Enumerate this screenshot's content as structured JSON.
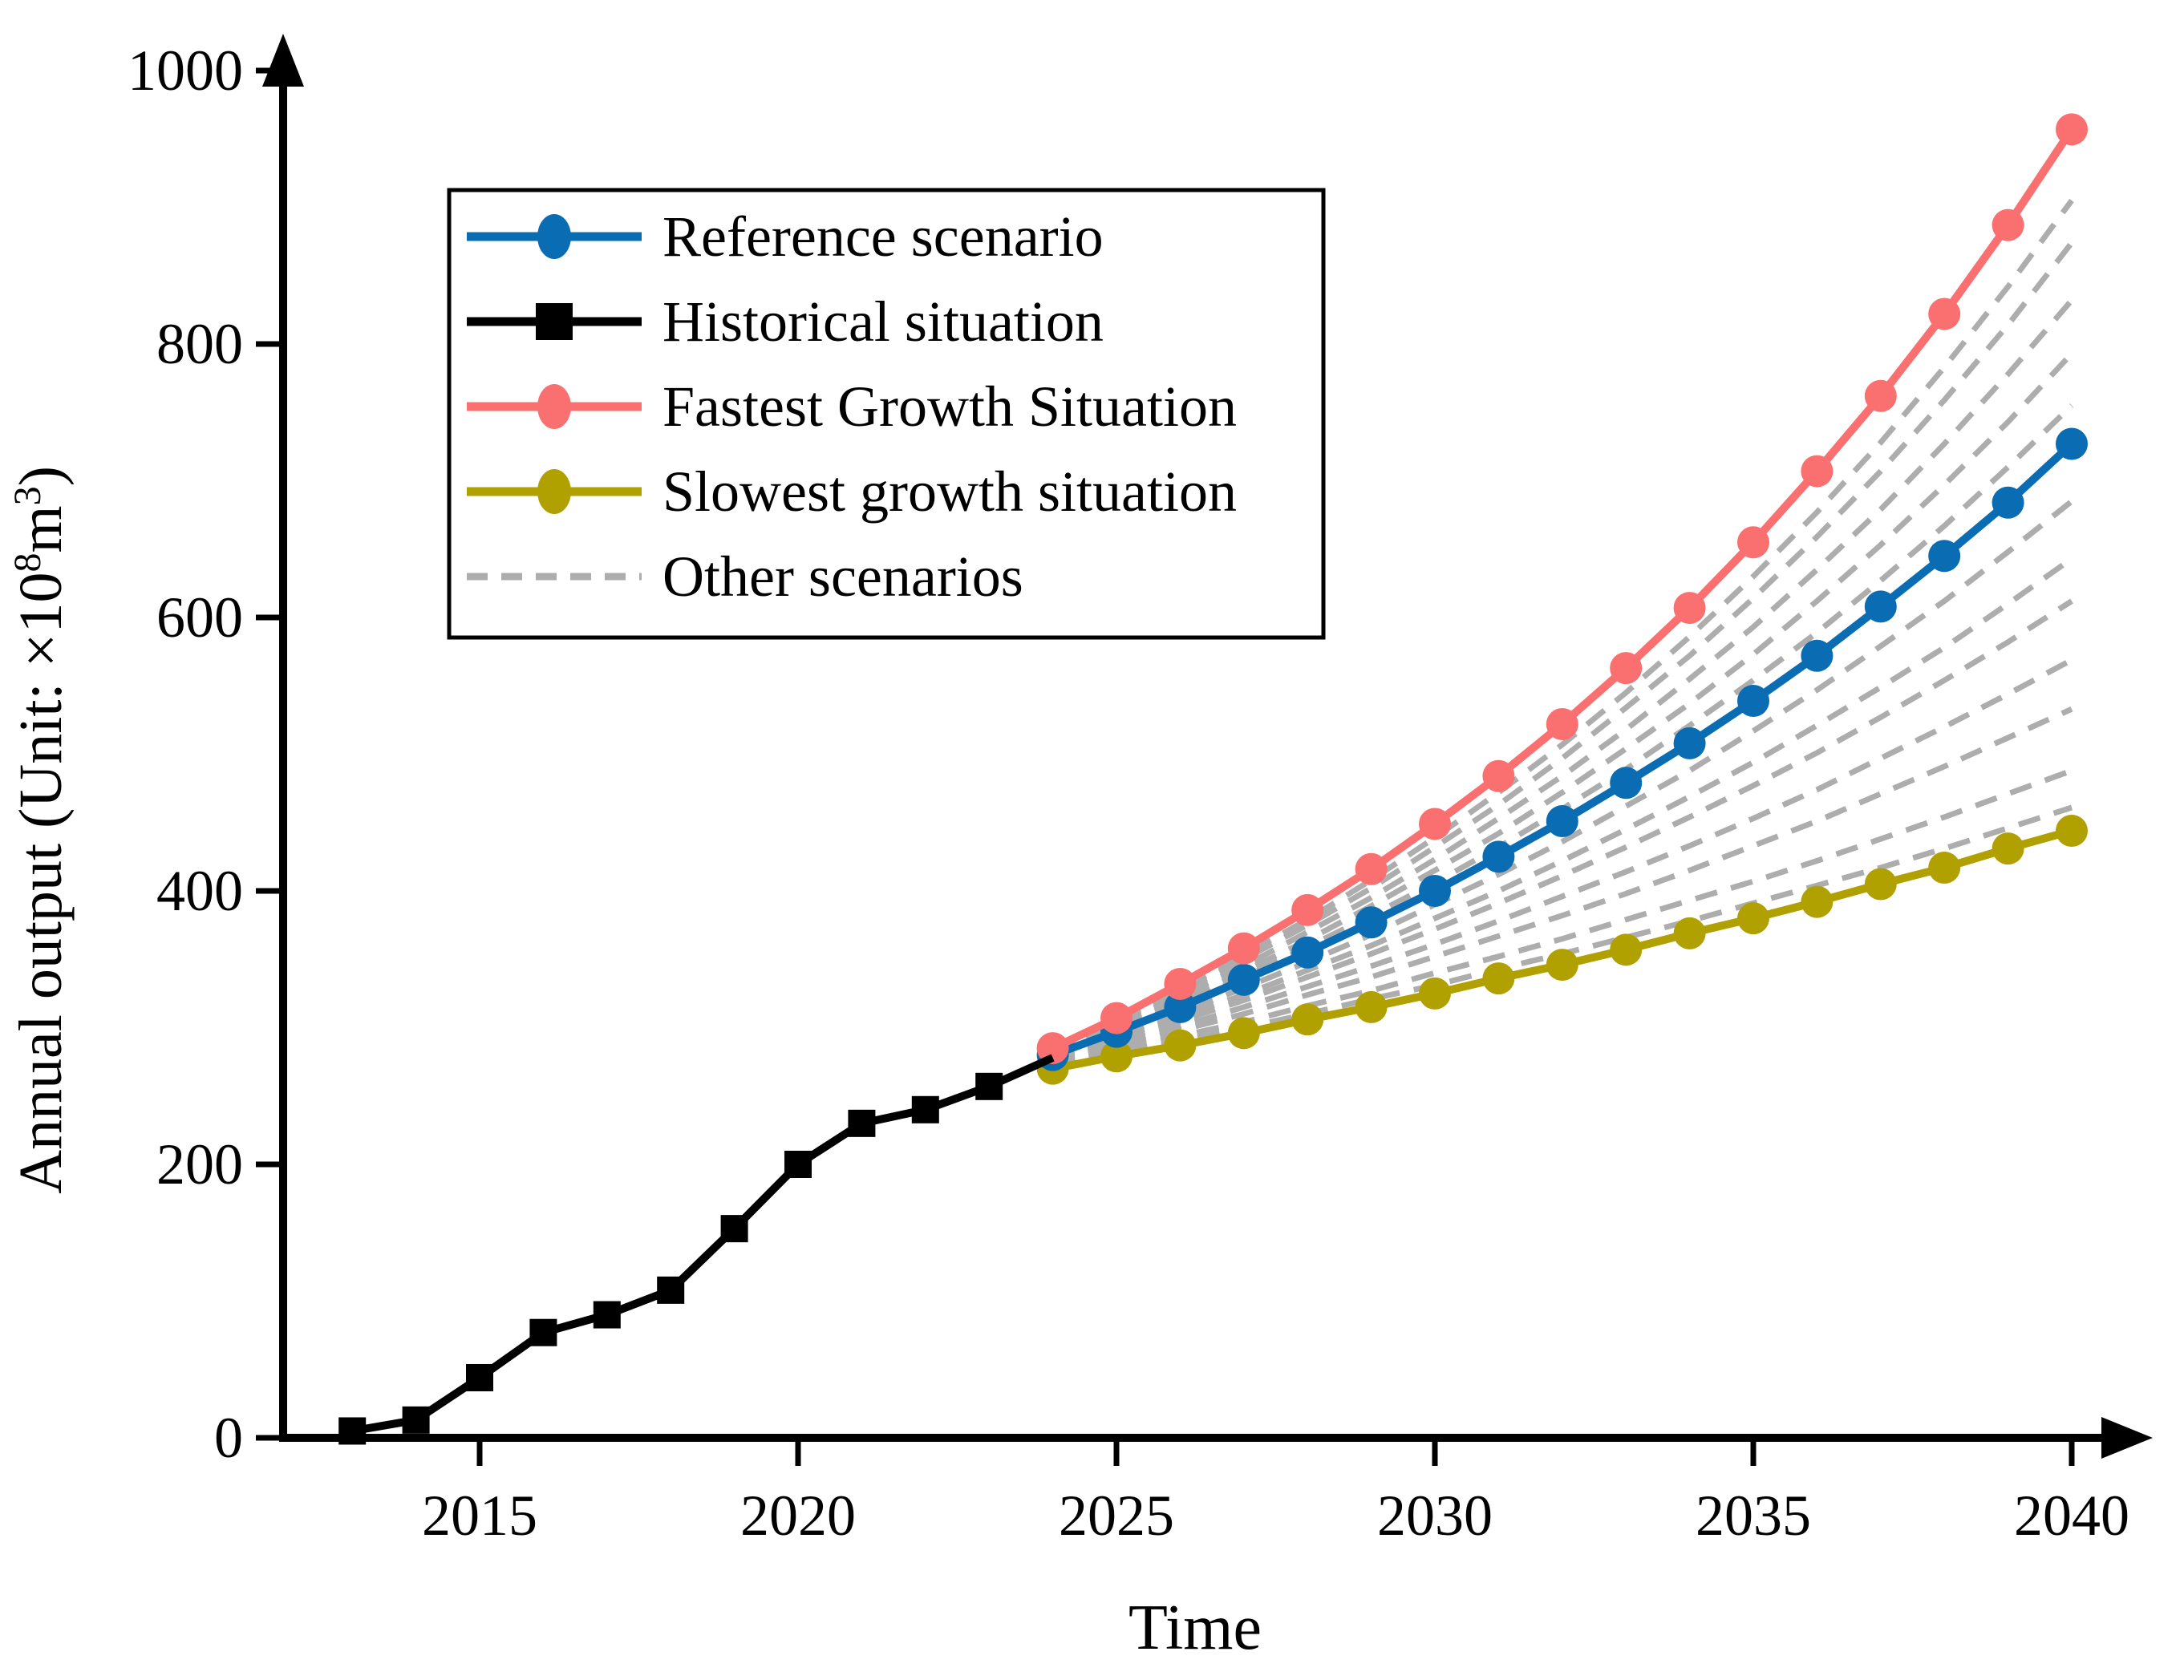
{
  "legend": {
    "entries": [
      {
        "label": "Reference scenario",
        "color": "#0A6CB2",
        "marker": "circle",
        "dash": false
      },
      {
        "label": "Historical situation",
        "color": "#000000",
        "marker": "square",
        "dash": false
      },
      {
        "label": "Fastest Growth Situation",
        "color": "#FA7070",
        "marker": "circle",
        "dash": false
      },
      {
        "label": "Slowest growth situation",
        "color": "#B0A000",
        "marker": "circle",
        "dash": false
      },
      {
        "label": "Other scenarios",
        "color": "#ADADAD",
        "marker": "none",
        "dash": true
      }
    ]
  },
  "chart_data": {
    "type": "line",
    "title": "",
    "xlabel": "Time",
    "ylabel": "Annual output (Unit: ×10⁸m³)",
    "ylabel_rich": [
      {
        "text": "Annual output (Unit: ×10",
        "sup": false
      },
      {
        "text": "8",
        "sup": true
      },
      {
        "text": "m",
        "sup": false
      },
      {
        "text": "3",
        "sup": true
      },
      {
        "text": ")",
        "sup": false
      }
    ],
    "xlim": [
      2012,
      2041
    ],
    "ylim": [
      0,
      1000
    ],
    "x_ticks": [
      2015,
      2020,
      2025,
      2030,
      2035,
      2040
    ],
    "y_ticks": [
      0,
      200,
      400,
      600,
      800,
      1000
    ],
    "grid": false,
    "legend_position": "upper-left",
    "series": [
      {
        "name": "Historical situation",
        "color": "#000000",
        "marker": "square",
        "line": "solid",
        "years": [
          2013,
          2014,
          2015,
          2016,
          2017,
          2018,
          2019,
          2020,
          2021,
          2022,
          2023
        ],
        "values": [
          5,
          13,
          44,
          77,
          90,
          108,
          153,
          200,
          230,
          240,
          257
        ],
        "tail": {
          "year": 2024,
          "value": 278
        }
      },
      {
        "name": "Slowest growth situation",
        "color": "#B0A000",
        "marker": "circle",
        "line": "solid",
        "years": [
          2024,
          2025,
          2026,
          2027,
          2028,
          2029,
          2030,
          2031,
          2032,
          2033,
          2034,
          2035,
          2036,
          2037,
          2038,
          2039,
          2040
        ],
        "values": [
          270,
          279,
          287,
          296,
          306,
          315,
          325,
          336,
          346,
          357,
          369,
          380,
          392,
          405,
          417,
          431,
          444
        ]
      },
      {
        "name": "Reference scenario",
        "color": "#0A6CB2",
        "marker": "circle",
        "line": "solid",
        "years": [
          2024,
          2025,
          2026,
          2027,
          2028,
          2029,
          2030,
          2031,
          2032,
          2033,
          2034,
          2035,
          2036,
          2037,
          2038,
          2039,
          2040
        ],
        "values": [
          280,
          297,
          315,
          335,
          355,
          377,
          400,
          425,
          451,
          479,
          508,
          539,
          572,
          608,
          645,
          684,
          727
        ]
      },
      {
        "name": "Fastest Growth Situation",
        "color": "#FA7070",
        "marker": "circle",
        "line": "solid",
        "years": [
          2024,
          2025,
          2026,
          2027,
          2028,
          2029,
          2030,
          2031,
          2032,
          2033,
          2034,
          2035,
          2036,
          2037,
          2038,
          2039,
          2040
        ],
        "values": [
          285,
          307,
          332,
          358,
          386,
          416,
          449,
          484,
          522,
          563,
          607,
          655,
          707,
          762,
          822,
          887,
          957
        ]
      }
    ],
    "other_scenarios": {
      "name": "Other scenarios",
      "color": "#ADADAD",
      "line": "dashed",
      "years": [
        2024,
        2025,
        2026,
        2027,
        2028,
        2029,
        2030,
        2031,
        2032,
        2033,
        2034,
        2035,
        2036,
        2037,
        2038,
        2039,
        2040
      ],
      "variants": [
        [
          284,
          305,
          328,
          353,
          379,
          408,
          439,
          472,
          507,
          545,
          586,
          630,
          677,
          728,
          783,
          842,
          905
        ],
        [
          283,
          304,
          326,
          350,
          375,
          402,
          432,
          463,
          497,
          534,
          572,
          614,
          659,
          707,
          759,
          814,
          874
        ],
        [
          282,
          302,
          323,
          345,
          370,
          395,
          423,
          453,
          484,
          518,
          555,
          593,
          635,
          679,
          727,
          778,
          832
        ],
        [
          281,
          300,
          320,
          341,
          364,
          389,
          415,
          442,
          472,
          504,
          537,
          573,
          612,
          653,
          697,
          743,
          793
        ],
        [
          280,
          298,
          317,
          337,
          359,
          382,
          406,
          432,
          460,
          489,
          521,
          554,
          589,
          627,
          667,
          710,
          755
        ],
        [
          278,
          294,
          311,
          329,
          348,
          368,
          390,
          412,
          436,
          462,
          488,
          517,
          547,
          579,
          612,
          648,
          685
        ],
        [
          277,
          292,
          308,
          324,
          342,
          360,
          380,
          400,
          422,
          445,
          469,
          494,
          521,
          549,
          578,
          610,
          643
        ],
        [
          276,
          290,
          305,
          320,
          337,
          354,
          372,
          391,
          411,
          432,
          454,
          477,
          501,
          527,
          554,
          582,
          612
        ],
        [
          275,
          288,
          301,
          315,
          330,
          345,
          361,
          378,
          396,
          414,
          433,
          453,
          474,
          497,
          520,
          544,
          569
        ],
        [
          274,
          286,
          298,
          310,
          324,
          337,
          352,
          367,
          382,
          398,
          415,
          433,
          451,
          471,
          491,
          512,
          533
        ],
        [
          273,
          283,
          294,
          304,
          316,
          327,
          340,
          352,
          365,
          379,
          393,
          407,
          422,
          438,
          454,
          471,
          488
        ],
        [
          272,
          281,
          290,
          300,
          310,
          321,
          331,
          343,
          354,
          366,
          378,
          391,
          404,
          417,
          431,
          446,
          461
        ]
      ]
    }
  }
}
